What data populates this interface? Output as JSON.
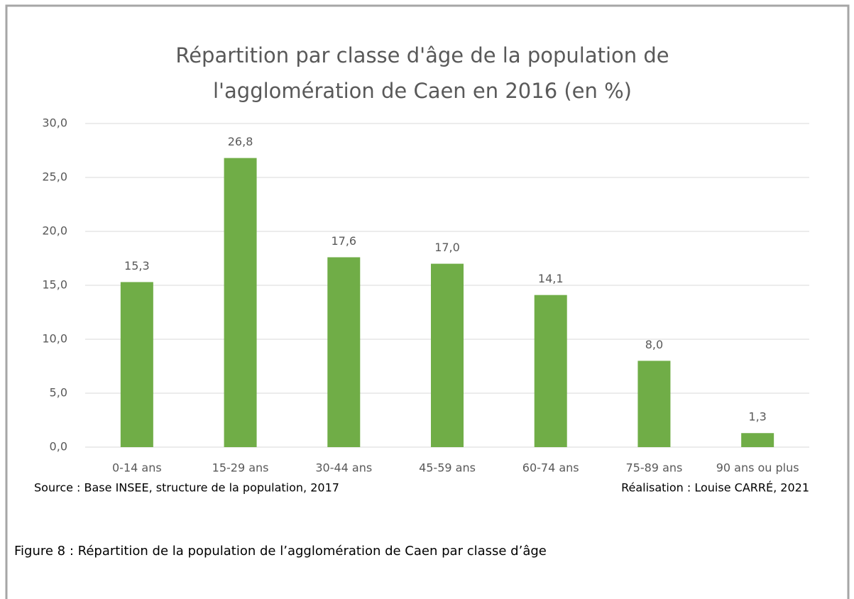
{
  "chart_data": {
    "type": "bar",
    "title": [
      "Répartition par classe d'âge de la population de",
      "l'agglomération de Caen en 2016 (en %)"
    ],
    "categories": [
      "0-14 ans",
      "15-29 ans",
      "30-44 ans",
      "45-59 ans",
      "60-74 ans",
      "75-89 ans",
      "90 ans ou plus"
    ],
    "values": [
      15.3,
      26.8,
      17.6,
      17.0,
      14.1,
      8.0,
      1.3
    ],
    "value_labels": [
      "15,3",
      "26,8",
      "17,6",
      "17,0",
      "14,1",
      "8,0",
      "1,3"
    ],
    "color": "#70ad47",
    "ylim": [
      0,
      30
    ],
    "yticks": [
      {
        "value": 0,
        "label": "0,0"
      },
      {
        "value": 5,
        "label": "5,0"
      },
      {
        "value": 10,
        "label": "10,0"
      },
      {
        "value": 15,
        "label": "15,0"
      },
      {
        "value": 20,
        "label": "20,0"
      },
      {
        "value": 25,
        "label": "25,0"
      },
      {
        "value": 30,
        "label": "30,0"
      }
    ],
    "grid": true,
    "source": "Source : Base INSEE, structure de la population, 2017",
    "credit": "Réalisation : Louise CARRÉ, 2021"
  },
  "caption": "Figure 8 : Répartition de la population de l’agglomération de Caen par classe d’âge"
}
